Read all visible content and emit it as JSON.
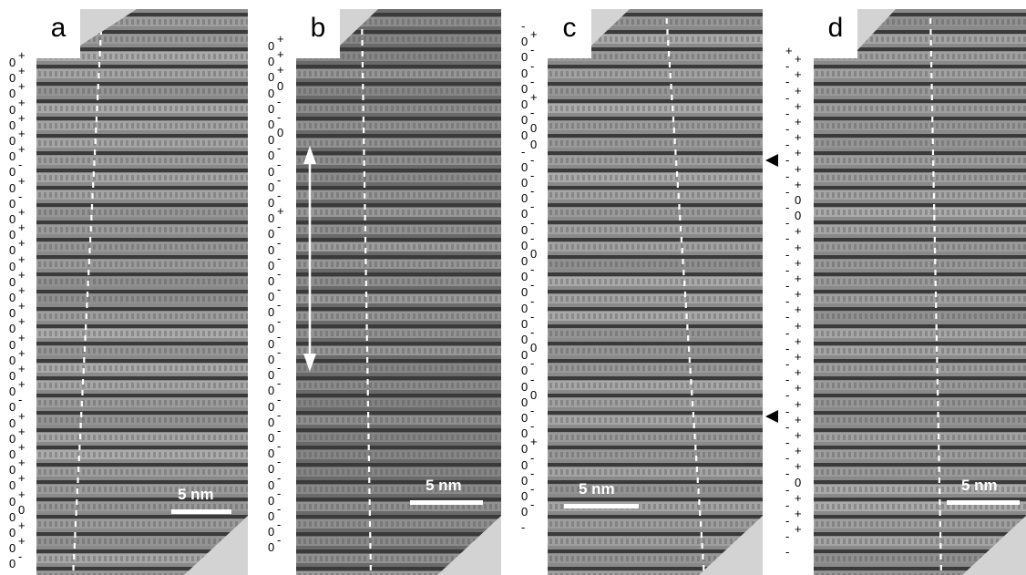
{
  "panels": [
    {
      "letter": "a",
      "scale_label": "5 nm"
    },
    {
      "letter": "b",
      "scale_label": "5 nm"
    },
    {
      "letter": "c",
      "scale_label": "5 nm"
    },
    {
      "letter": "d",
      "scale_label": "5 nm"
    }
  ],
  "label_columns": {
    "a": [
      "0+",
      "0+",
      "0+",
      "0+",
      "0+",
      "0+",
      "0+",
      "0-",
      "0+",
      "0-",
      "0+",
      "0+",
      "0+",
      "0+",
      "0+",
      "0+",
      "0+",
      "0+",
      "0+",
      "0+",
      "0+",
      "0+",
      "0-",
      "0+",
      "0+",
      "0+",
      "0+",
      "0+",
      "0+",
      "00",
      "0+",
      "0+",
      "0-"
    ],
    "b": [
      "0+",
      "0+",
      "0+",
      "00",
      "0-",
      "0-",
      "00",
      "0-",
      "0-",
      "0-",
      "0-",
      "0+",
      "0-",
      "0-",
      "0-",
      "0-",
      "0-",
      "0-",
      "0-",
      "0-",
      "0-",
      "0-",
      "0-",
      "0-",
      "0-",
      "0-",
      "0-",
      "0-",
      "0-",
      "0-",
      "0-",
      "0-",
      "0-"
    ],
    "c": [
      "-",
      "0+",
      "0-",
      "0-",
      "0-",
      "0+",
      "0-",
      "00",
      "-0",
      "0-",
      "0-",
      "0-",
      "0-",
      "0-",
      "0-",
      "00",
      "0-",
      "0-",
      "0-",
      "0-",
      "0-",
      "00",
      "0-",
      "0-",
      "00",
      "0-",
      "0-",
      "0+",
      "0-",
      "0-",
      "0-",
      "0-",
      "-"
    ],
    "d": [
      "+",
      "-+",
      "-+",
      "-+",
      "-+",
      "-+",
      "-+",
      "-+",
      "-+",
      "-+",
      "-0",
      "-0",
      "-+",
      "-+",
      "-+",
      "-+",
      "-+",
      "-+",
      "-+",
      "-+",
      "-+",
      "-+",
      "-+",
      "-+",
      "-+",
      "-+",
      "-+",
      "-+",
      "-0",
      "-+",
      "-+",
      "-+",
      "-"
    ]
  },
  "colors": {
    "background": "#ffffff",
    "cutout": "#d3d3d3",
    "marker": "#ffffff"
  },
  "icons": [
    "double-arrow-icon",
    "triangle-marker-icon"
  ]
}
